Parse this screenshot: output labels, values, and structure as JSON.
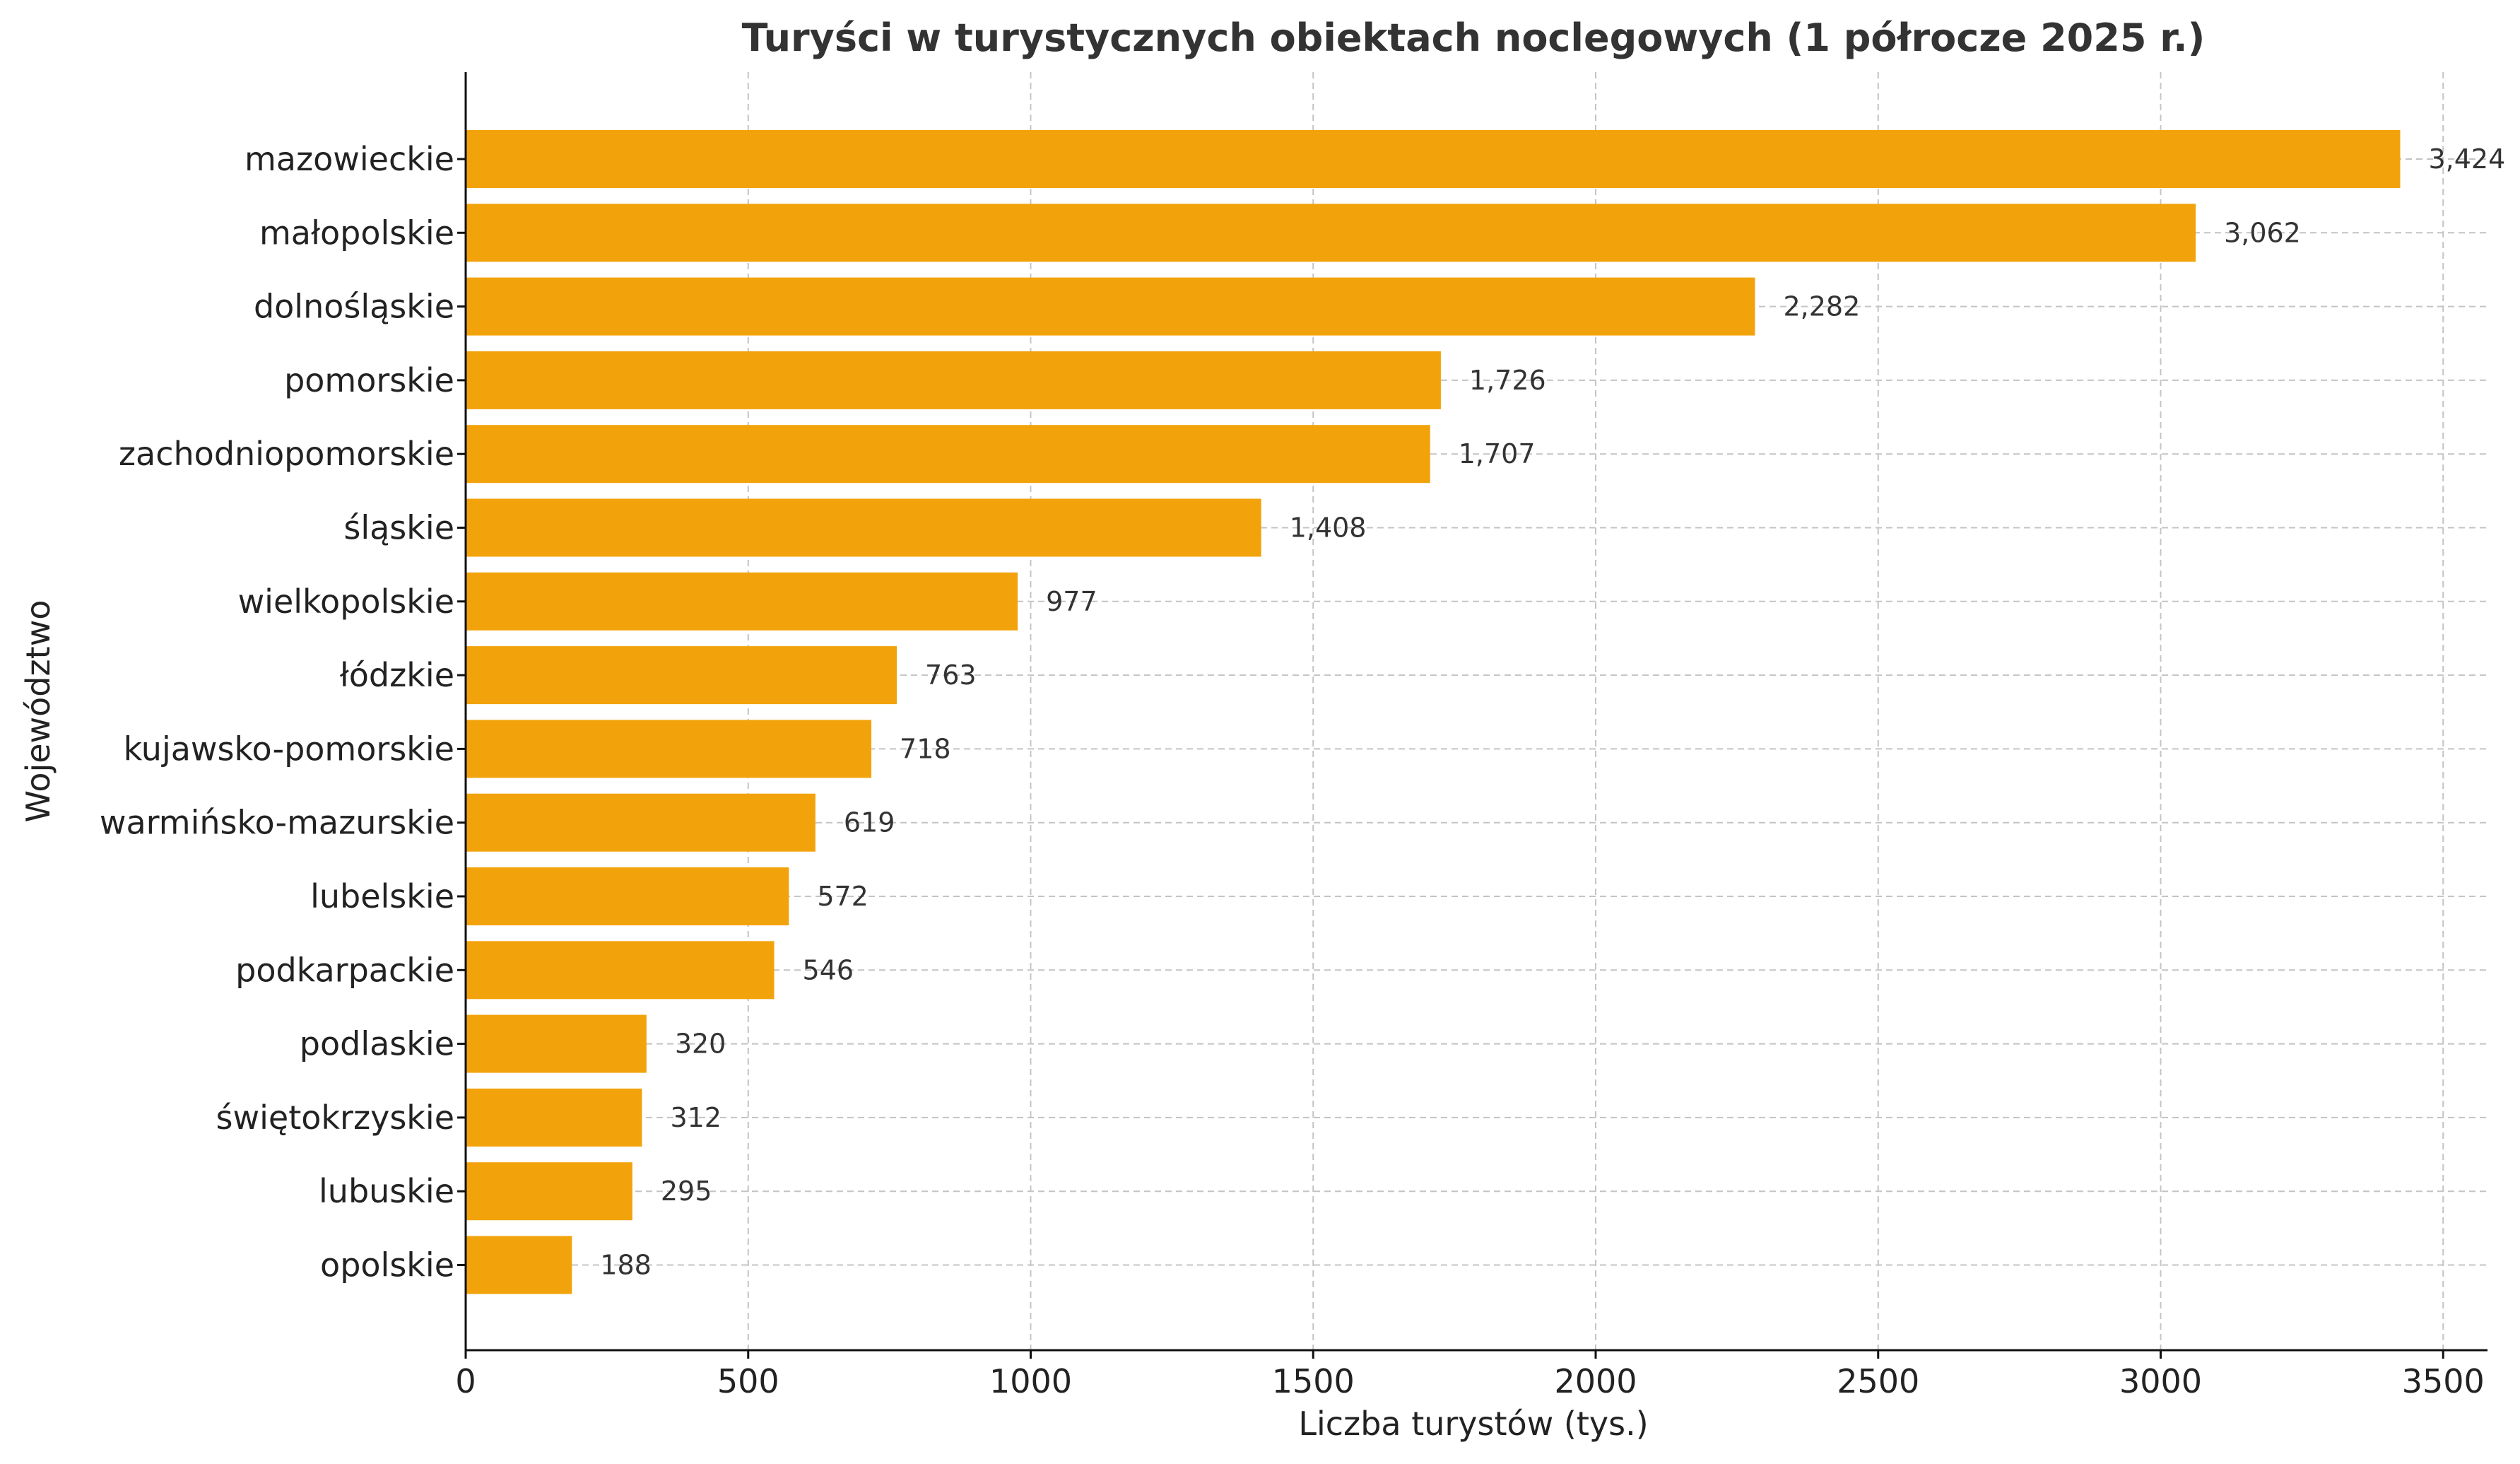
{
  "chart_data": {
    "type": "bar",
    "orientation": "horizontal",
    "title": "Turyści w turystycznych obiektach noclegowych (1 półrocze 2025 r.)",
    "xlabel": "Liczba turystów (tys.)",
    "ylabel": "Województwo",
    "categories": [
      "opolskie",
      "lubuskie",
      "świętokrzyskie",
      "podlaskie",
      "podkarpackie",
      "lubelskie",
      "warmińsko-mazurskie",
      "kujawsko-pomorskie",
      "łódzkie",
      "wielkopolskie",
      "śląskie",
      "zachodniopomorskie",
      "pomorskie",
      "dolnośląskie",
      "małopolskie",
      "mazowieckie"
    ],
    "values": [
      188,
      295,
      312,
      320,
      546,
      572,
      619,
      718,
      763,
      977,
      1408,
      1707,
      1726,
      2282,
      3062,
      3424
    ],
    "value_labels": [
      "188",
      "295",
      "312",
      "320",
      "546",
      "572",
      "619",
      "718",
      "763",
      "977",
      "1,408",
      "1,707",
      "1,726",
      "2,282",
      "3,062",
      "3,424"
    ],
    "xlim": [
      0,
      3600
    ],
    "xticks": [
      0,
      500,
      1000,
      1500,
      2000,
      2500,
      3000,
      3500
    ],
    "xtick_labels": [
      "0",
      "500",
      "1000",
      "1500",
      "2000",
      "2500",
      "3000",
      "3500"
    ],
    "grid": true,
    "bar_color": "#f2a30b"
  }
}
